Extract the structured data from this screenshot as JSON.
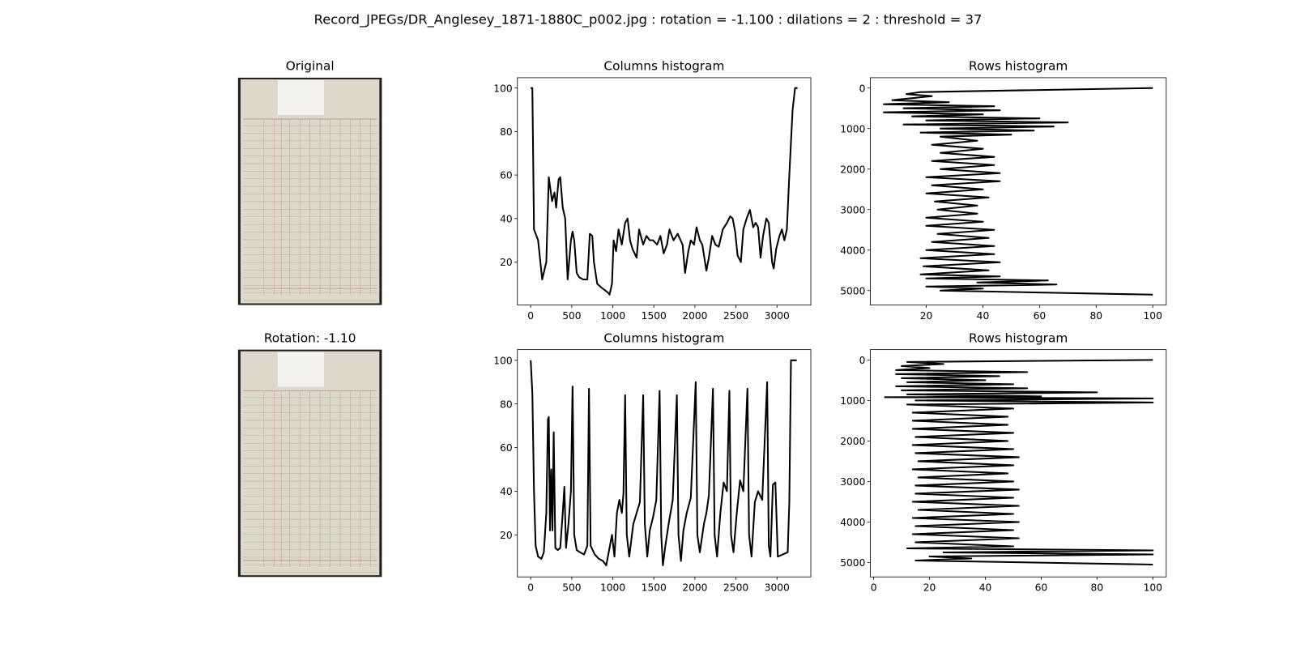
{
  "title": "Record_JPEGs/DR_Anglesey_1871-1880C_p002.jpg : rotation = -1.100 : dilations = 2 : threshold = 37",
  "chart_data": [
    {
      "type": "image",
      "title": "Original"
    },
    {
      "type": "line",
      "title": "Columns histogram",
      "color": "#000000",
      "x": [
        0,
        20,
        40,
        90,
        140,
        190,
        220,
        260,
        290,
        310,
        340,
        360,
        390,
        420,
        450,
        490,
        510,
        530,
        560,
        590,
        640,
        690,
        720,
        750,
        770,
        810,
        870,
        940,
        960,
        990,
        1010,
        1040,
        1070,
        1110,
        1150,
        1180,
        1210,
        1240,
        1290,
        1320,
        1370,
        1410,
        1450,
        1490,
        1540,
        1580,
        1620,
        1660,
        1690,
        1740,
        1790,
        1850,
        1880,
        1920,
        1950,
        1990,
        2020,
        2060,
        2090,
        2140,
        2170,
        2210,
        2250,
        2290,
        2340,
        2390,
        2430,
        2460,
        2490,
        2520,
        2560,
        2590,
        2630,
        2670,
        2710,
        2740,
        2770,
        2800,
        2830,
        2870,
        2900,
        2940,
        2960,
        2990,
        3030,
        3060,
        3090,
        3120,
        3150,
        3190,
        3220,
        3250
      ],
      "y": [
        100,
        100,
        35,
        30,
        12,
        20,
        59,
        48,
        52,
        45,
        58,
        59,
        45,
        40,
        12,
        30,
        34,
        30,
        15,
        13,
        12,
        12,
        33,
        32,
        20,
        10,
        8,
        6,
        5,
        10,
        30,
        25,
        35,
        28,
        38,
        40,
        30,
        26,
        22,
        35,
        28,
        32,
        30,
        30,
        28,
        32,
        24,
        28,
        35,
        30,
        33,
        28,
        15,
        25,
        30,
        28,
        36,
        30,
        28,
        16,
        22,
        32,
        28,
        27,
        35,
        38,
        41,
        40,
        34,
        23,
        20,
        35,
        40,
        44,
        36,
        38,
        36,
        22,
        32,
        40,
        38,
        20,
        17,
        26,
        32,
        35,
        30,
        35,
        60,
        90,
        100,
        100
      ],
      "xlim": [
        -162,
        3412
      ],
      "ylim": [
        0.25,
        104.75
      ],
      "xticks": [
        0,
        500,
        1000,
        1500,
        2000,
        2500,
        3000
      ],
      "yticks": [
        20,
        40,
        60,
        80,
        100
      ]
    },
    {
      "type": "line",
      "title": "Rows histogram",
      "color": "#000000",
      "x": [
        100,
        18,
        13,
        22,
        8,
        28,
        5,
        44,
        12,
        46,
        5,
        40,
        15,
        60,
        20,
        70,
        12,
        65,
        25,
        58,
        18,
        50,
        25,
        38,
        22,
        40,
        25,
        44,
        22,
        44,
        25,
        46,
        20,
        46,
        22,
        40,
        20,
        42,
        23,
        38,
        24,
        38,
        20,
        40,
        20,
        44,
        24,
        42,
        22,
        44,
        20,
        44,
        18,
        46,
        19,
        42,
        18,
        46,
        20,
        63,
        38,
        66,
        20,
        40,
        25,
        100
      ],
      "y": [
        0,
        100,
        150,
        200,
        300,
        350,
        400,
        450,
        500,
        550,
        600,
        650,
        700,
        750,
        800,
        850,
        900,
        950,
        1000,
        1050,
        1100,
        1150,
        1200,
        1300,
        1400,
        1500,
        1600,
        1700,
        1800,
        1900,
        2000,
        2100,
        2200,
        2300,
        2400,
        2500,
        2600,
        2700,
        2800,
        2900,
        3000,
        3100,
        3200,
        3300,
        3400,
        3500,
        3600,
        3700,
        3800,
        3900,
        4000,
        4100,
        4200,
        4300,
        4400,
        4500,
        4600,
        4650,
        4700,
        4750,
        4800,
        4850,
        4900,
        4950,
        5000,
        5100
      ],
      "xlim": [
        0.25,
        104.75
      ],
      "ylim": [
        5355,
        -255
      ],
      "xticks": [
        20,
        40,
        60,
        80,
        100
      ],
      "yticks": [
        0,
        1000,
        2000,
        3000,
        4000,
        5000
      ]
    },
    {
      "type": "image",
      "title": "Rotation: -1.10"
    },
    {
      "type": "line",
      "title": "Columns histogram",
      "color": "#000000",
      "x": [
        0,
        20,
        40,
        60,
        90,
        130,
        160,
        190,
        210,
        220,
        235,
        250,
        265,
        280,
        300,
        330,
        360,
        390,
        410,
        430,
        460,
        490,
        510,
        530,
        560,
        600,
        650,
        690,
        710,
        730,
        780,
        830,
        880,
        920,
        940,
        960,
        990,
        1020,
        1050,
        1080,
        1110,
        1130,
        1150,
        1170,
        1200,
        1250,
        1290,
        1330,
        1370,
        1390,
        1420,
        1450,
        1490,
        1530,
        1570,
        1590,
        1610,
        1640,
        1680,
        1730,
        1780,
        1800,
        1830,
        1860,
        1900,
        1950,
        2010,
        2030,
        2060,
        2110,
        2140,
        2170,
        2220,
        2240,
        2270,
        2310,
        2350,
        2390,
        2420,
        2440,
        2470,
        2510,
        2550,
        2590,
        2640,
        2660,
        2690,
        2730,
        2770,
        2820,
        2880,
        2900,
        2920,
        2950,
        2980,
        3010,
        3130,
        3150,
        3170,
        3240
      ],
      "y": [
        100,
        85,
        40,
        15,
        10,
        9,
        12,
        30,
        73,
        74,
        22,
        50,
        22,
        67,
        14,
        13,
        14,
        30,
        42,
        14,
        25,
        40,
        88,
        20,
        13,
        12,
        11,
        15,
        87,
        15,
        11,
        9,
        8,
        6,
        10,
        14,
        20,
        10,
        30,
        36,
        30,
        39,
        84,
        20,
        10,
        25,
        30,
        35,
        84,
        25,
        10,
        22,
        28,
        36,
        86,
        20,
        6,
        15,
        25,
        36,
        84,
        20,
        8,
        22,
        30,
        37,
        90,
        20,
        12,
        25,
        30,
        38,
        87,
        20,
        10,
        30,
        44,
        40,
        86,
        20,
        12,
        30,
        45,
        40,
        87,
        20,
        10,
        35,
        40,
        36,
        90,
        15,
        10,
        43,
        44,
        10,
        12,
        35,
        100,
        100
      ],
      "xlim": [
        -162,
        3412
      ],
      "ylim": [
        0.7,
        104.9
      ],
      "xticks": [
        0,
        500,
        1000,
        1500,
        2000,
        2500,
        3000
      ],
      "yticks": [
        20,
        40,
        60,
        80,
        100
      ]
    },
    {
      "type": "line",
      "title": "Rows histogram",
      "color": "#000000",
      "x": [
        100,
        12,
        25,
        10,
        20,
        8,
        55,
        8,
        45,
        10,
        40,
        12,
        50,
        8,
        55,
        10,
        80,
        12,
        60,
        4,
        100,
        15,
        100,
        12,
        50,
        14,
        48,
        14,
        48,
        14,
        50,
        15,
        48,
        14,
        50,
        15,
        52,
        16,
        50,
        14,
        48,
        16,
        50,
        15,
        52,
        15,
        50,
        14,
        52,
        16,
        50,
        14,
        52,
        15,
        50,
        14,
        52,
        15,
        50,
        12,
        100,
        25,
        100,
        20,
        35,
        15,
        100
      ],
      "y": [
        0,
        50,
        100,
        150,
        200,
        250,
        300,
        350,
        400,
        450,
        500,
        550,
        600,
        650,
        700,
        750,
        800,
        850,
        900,
        920,
        950,
        1000,
        1050,
        1100,
        1200,
        1300,
        1400,
        1500,
        1600,
        1700,
        1800,
        1900,
        2000,
        2100,
        2200,
        2300,
        2400,
        2500,
        2600,
        2700,
        2800,
        2900,
        3000,
        3100,
        3200,
        3300,
        3400,
        3500,
        3600,
        3700,
        3800,
        3900,
        4000,
        4100,
        4200,
        4300,
        4400,
        4500,
        4600,
        4650,
        4700,
        4750,
        4800,
        4850,
        4900,
        4950,
        5050
      ],
      "xlim": [
        -1.2,
        104.8
      ],
      "ylim": [
        5355,
        -255
      ],
      "xticks": [
        0,
        20,
        40,
        60,
        80,
        100
      ],
      "yticks": [
        0,
        1000,
        2000,
        3000,
        4000,
        5000
      ]
    }
  ]
}
